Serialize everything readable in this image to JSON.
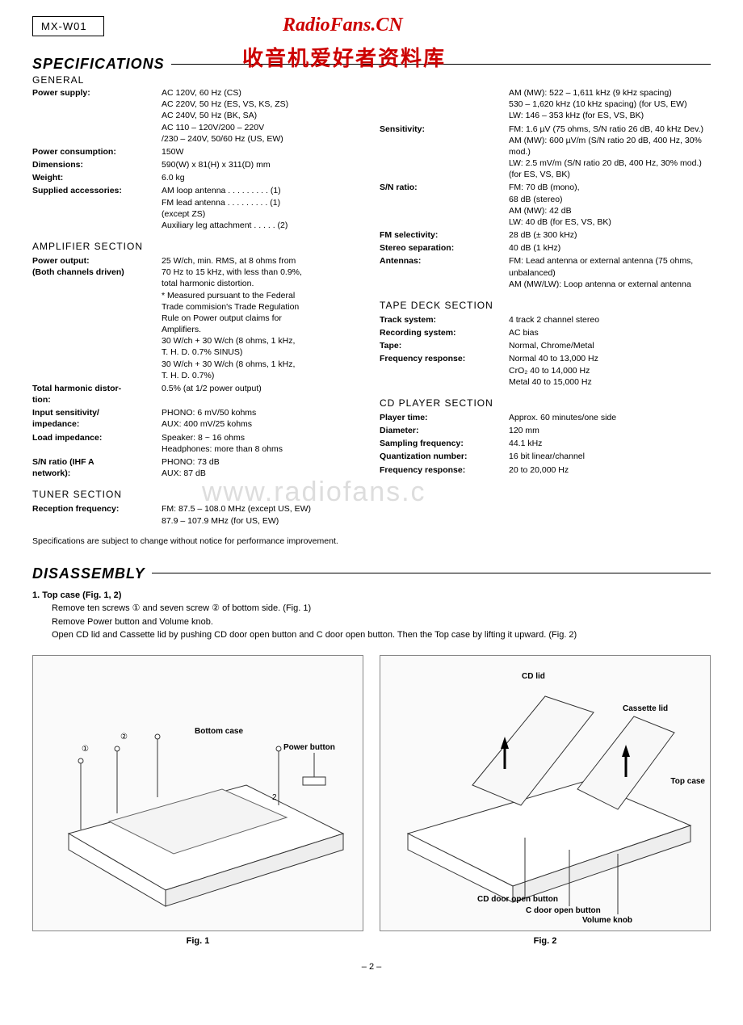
{
  "header": {
    "model": "MX-W01",
    "watermark_site": "RadioFans.CN",
    "watermark_cn": "收音机爱好者资料库",
    "watermark_gray": "www.radiofans.c"
  },
  "specifications": {
    "title": "SPECIFICATIONS",
    "general_label": "GENERAL",
    "left": {
      "rows": [
        {
          "label": "Power supply:",
          "values": [
            "AC 120V, 60 Hz (CS)",
            "AC 220V, 50 Hz (ES, VS, KS, ZS)",
            "AC 240V, 50 Hz (BK, SA)",
            "AC 110 – 120V/200 – 220V",
            "/230 – 240V, 50/60 Hz (US, EW)"
          ]
        },
        {
          "label": "Power consumption:",
          "values": [
            "150W"
          ]
        },
        {
          "label": "Dimensions:",
          "values": [
            "590(W) x 81(H) x 311(D) mm"
          ]
        },
        {
          "label": "Weight:",
          "values": [
            "6.0 kg"
          ]
        },
        {
          "label": "Supplied accessories:",
          "values": [
            "AM loop antenna . . . . . . . . . (1)",
            "FM lead antenna  . . . . . . . . . (1)",
            "  (except ZS)",
            "Auxiliary leg attachment  . . . . . (2)"
          ]
        }
      ],
      "amplifier_label": "AMPLIFIER SECTION",
      "amp_rows": [
        {
          "label": "Power output:",
          "label2": "(Both channels driven)",
          "values": [
            "25 W/ch, min. RMS, at 8 ohms from",
            "70 Hz to 15 kHz, with less than 0.9%,",
            "total harmonic distortion.",
            "* Measured pursuant to the Federal",
            "  Trade commision's Trade Regulation",
            "  Rule on Power output claims for",
            "  Amplifiers.",
            "30 W/ch + 30 W/ch (8 ohms, 1 kHz,",
            "T. H. D. 0.7% SINUS)",
            "30 W/ch + 30 W/ch (8 ohms, 1 kHz,",
            "T. H. D. 0.7%)"
          ]
        },
        {
          "label": "Total harmonic distor-",
          "label2": "tion:",
          "values": [
            "0.5% (at 1/2 power output)"
          ]
        },
        {
          "label": "Input sensitivity/",
          "label2": "impedance:",
          "values": [
            "PHONO: 6 mV/50 kohms",
            "AUX: 400 mV/25 kohms"
          ]
        },
        {
          "label": "Load impedance:",
          "values": [
            "Speaker: 8 ~ 16 ohms",
            "Headphones: more than 8 ohms"
          ]
        },
        {
          "label": "S/N ratio (IHF A",
          "label2": "network):",
          "values": [
            "PHONO: 73 dB",
            "AUX: 87 dB"
          ]
        }
      ],
      "tuner_label": "TUNER SECTION",
      "tuner_rows": [
        {
          "label": "Reception frequency:",
          "values": [
            "FM: 87.5 – 108.0 MHz (except US, EW)",
            "      87.9 – 107.9 MHz (for US, EW)"
          ]
        }
      ]
    },
    "right": {
      "top_values": [
        "AM (MW): 522 – 1,611 kHz (9 kHz spacing)",
        "530 – 1,620 kHz (10 kHz spacing) (for US, EW)",
        "LW: 146 – 353 kHz (for ES, VS, BK)"
      ],
      "rows": [
        {
          "label": "Sensitivity:",
          "values": [
            "FM: 1.6 µV (75 ohms, S/N ratio 26 dB, 40 kHz Dev.)",
            "AM (MW): 600 µV/m (S/N ratio 20 dB, 400 Hz, 30% mod.)",
            "LW: 2.5 mV/m (S/N ratio 20 dB, 400 Hz, 30% mod.) (for ES, VS, BK)"
          ]
        },
        {
          "label": "S/N ratio:",
          "values": [
            "FM: 70 dB (mono),",
            "      68 dB (stereo)",
            "AM (MW): 42 dB",
            "LW: 40 dB (for ES, VS, BK)"
          ]
        },
        {
          "label": "FM selectivity:",
          "values": [
            "28 dB (± 300 kHz)"
          ]
        },
        {
          "label": "Stereo separation:",
          "values": [
            "40 dB (1 kHz)"
          ]
        },
        {
          "label": "Antennas:",
          "values": [
            "FM: Lead antenna or external antenna (75 ohms, unbalanced)",
            "AM (MW/LW): Loop antenna or external antenna"
          ]
        }
      ],
      "tape_label": "TAPE DECK SECTION",
      "tape_rows": [
        {
          "label": "Track system:",
          "values": [
            "4 track 2 channel stereo"
          ]
        },
        {
          "label": "Recording system:",
          "values": [
            "AC bias"
          ]
        },
        {
          "label": "Tape:",
          "values": [
            "Normal, Chrome/Metal"
          ]
        },
        {
          "label": "Frequency response:",
          "values": [
            "Normal 40 to 13,000 Hz",
            "CrO₂ 40 to 14,000 Hz",
            "Metal 40 to 15,000 Hz"
          ]
        }
      ],
      "cd_label": "CD PLAYER SECTION",
      "cd_rows": [
        {
          "label": "Player time:",
          "values": [
            "Approx. 60 minutes/one side"
          ]
        },
        {
          "label": "Diameter:",
          "values": [
            "120 mm"
          ]
        },
        {
          "label": "Sampling frequency:",
          "values": [
            "44.1 kHz"
          ]
        },
        {
          "label": "Quantization number:",
          "values": [
            "16 bit linear/channel"
          ]
        },
        {
          "label": "Frequency response:",
          "values": [
            "20 to 20,000 Hz"
          ]
        }
      ]
    },
    "footnote": "Specifications are subject to change without notice for performance improvement."
  },
  "disassembly": {
    "title": "DISASSEMBLY",
    "step_title": "1.  Top case (Fig. 1, 2)",
    "step_lines": [
      "Remove ten screws ① and seven screw ② of bottom side. (Fig. 1)",
      "Remove Power button and Volume knob.",
      "Open CD lid and Cassette lid by pushing CD door open button and C door open button. Then the Top case by lifting it upward. (Fig. 2)"
    ],
    "fig1": {
      "caption": "Fig. 1",
      "labels": {
        "bottom_case": "Bottom case",
        "power_button": "Power button",
        "n1": "①",
        "n2": "②",
        "num2": "2"
      }
    },
    "fig2": {
      "caption": "Fig. 2",
      "labels": {
        "cd_lid": "CD lid",
        "cassette_lid": "Cassette lid",
        "top_case": "Top case",
        "cd_door": "CD door open button",
        "c_door": "C door open button",
        "volume": "Volume knob"
      }
    }
  },
  "page_number": "– 2 –"
}
